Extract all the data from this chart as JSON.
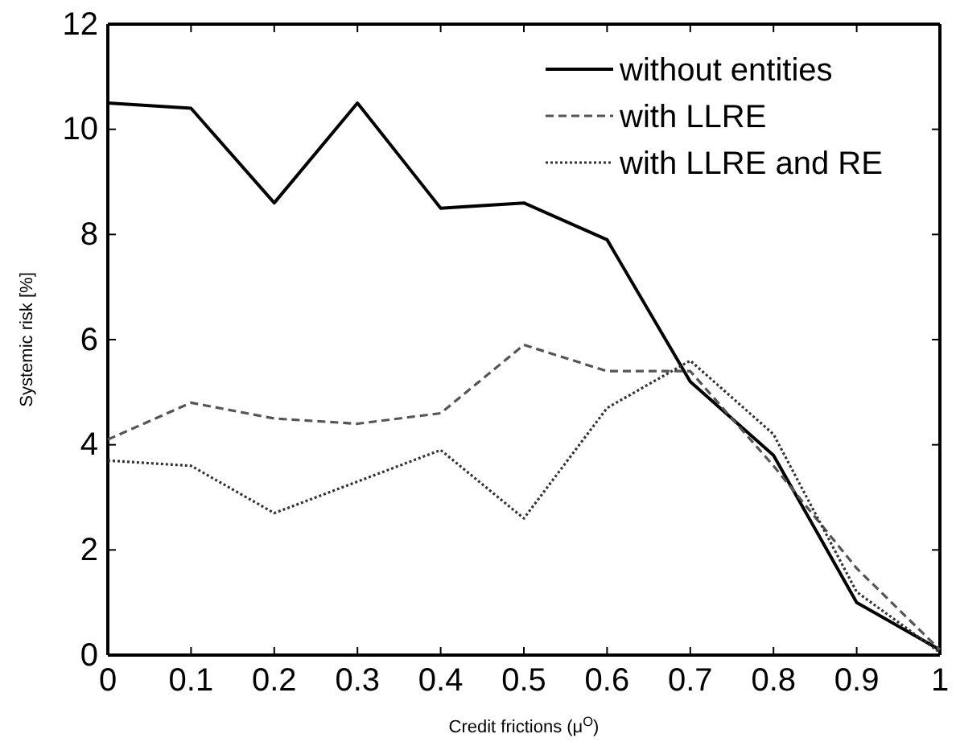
{
  "chart_data": {
    "type": "line",
    "xlabel": "Credit frictions (μ$^{O}$)",
    "ylabel": "Systemic risk [%]",
    "x": [
      0,
      0.1,
      0.2,
      0.3,
      0.4,
      0.5,
      0.6,
      0.7,
      0.8,
      0.9,
      1
    ],
    "xlim": [
      0,
      1
    ],
    "xticks": [
      0,
      0.1,
      0.2,
      0.3,
      0.4,
      0.5,
      0.6,
      0.7,
      0.8,
      0.9,
      1
    ],
    "ylim": [
      0,
      12
    ],
    "yticks": [
      0,
      2,
      4,
      6,
      8,
      10,
      12
    ],
    "grid": false,
    "legend": "top right",
    "series": [
      {
        "name": "without entities",
        "color": "#000000",
        "line_style": "solid",
        "values": [
          10.5,
          10.4,
          8.6,
          10.5,
          8.5,
          8.6,
          7.9,
          5.2,
          3.8,
          1.0,
          0.1
        ]
      },
      {
        "name": "with LLRE",
        "color": "#555555",
        "line_style": "dashed",
        "values": [
          4.1,
          4.8,
          4.5,
          4.4,
          4.6,
          5.9,
          5.4,
          5.4,
          3.6,
          1.65,
          0.1
        ]
      },
      {
        "name": "with LLRE and RE",
        "color": "#333333",
        "line_style": "dotted",
        "values": [
          3.7,
          3.6,
          2.7,
          3.3,
          3.9,
          2.6,
          4.7,
          5.6,
          4.2,
          1.2,
          0.05
        ]
      }
    ]
  }
}
